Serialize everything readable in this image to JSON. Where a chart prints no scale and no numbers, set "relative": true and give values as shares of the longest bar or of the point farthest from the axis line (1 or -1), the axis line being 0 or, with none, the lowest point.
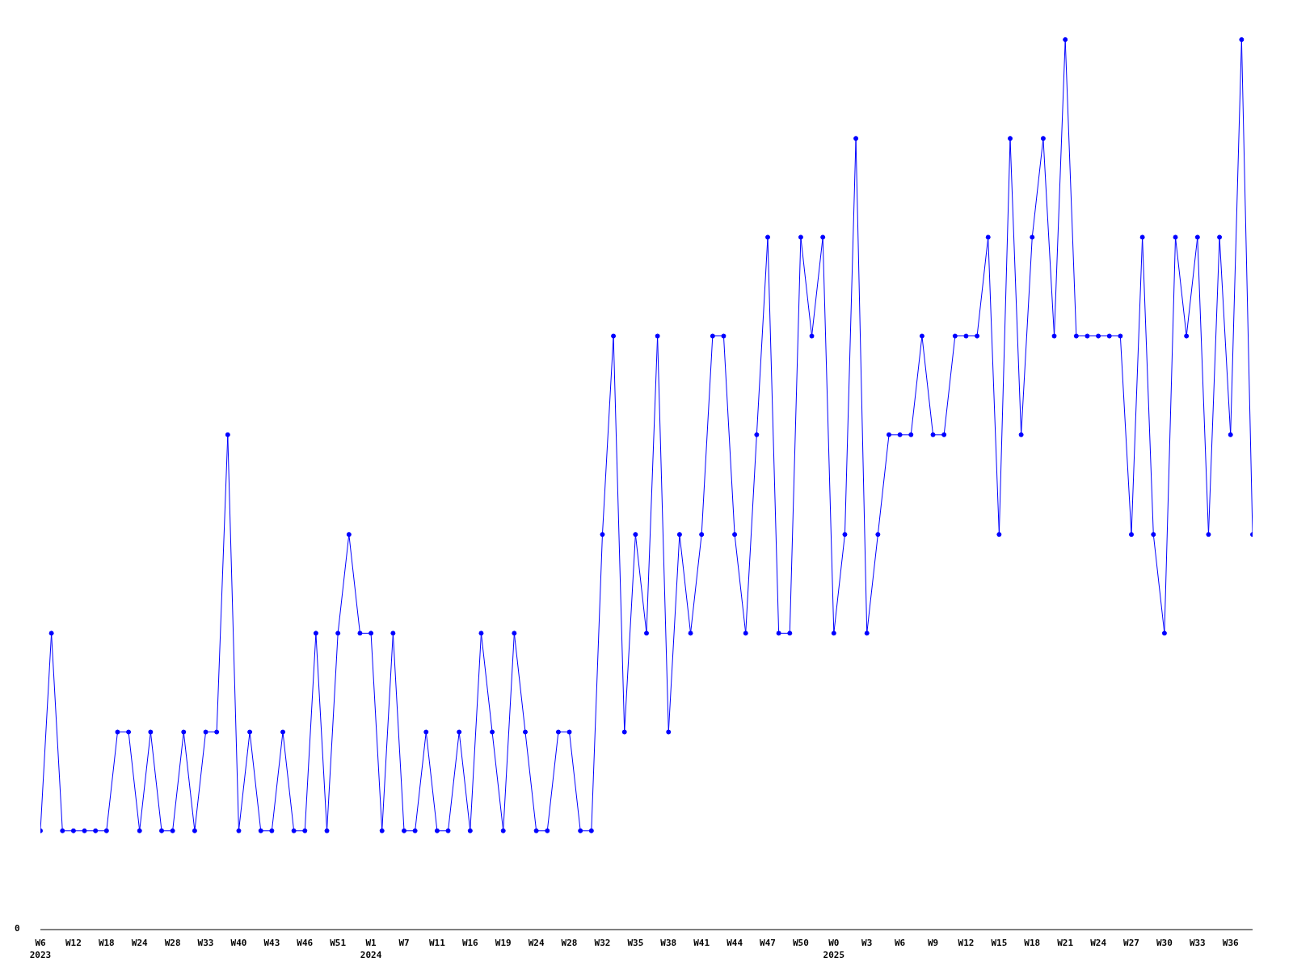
{
  "chart_data": {
    "type": "line",
    "relative": true,
    "annotations": [
      "0"
    ],
    "marker": "circle",
    "line_style": "solid",
    "legend": false,
    "categories": [
      "W6\n2023",
      null,
      null,
      "W12",
      null,
      null,
      "W18",
      null,
      null,
      "W24",
      null,
      null,
      "W28",
      null,
      null,
      "W33",
      null,
      null,
      "W40",
      null,
      null,
      "W43",
      null,
      null,
      "W46",
      null,
      null,
      "W51",
      null,
      null,
      "W1\n2024",
      null,
      null,
      "W7",
      null,
      null,
      "W11",
      null,
      null,
      "W16",
      null,
      null,
      "W19",
      null,
      null,
      "W24",
      null,
      null,
      "W28",
      null,
      null,
      "W32",
      null,
      null,
      "W35",
      null,
      null,
      "W38",
      null,
      null,
      "W41",
      null,
      null,
      "W44",
      null,
      null,
      "W47",
      null,
      null,
      "W50",
      null,
      null,
      "W0\n2025",
      null,
      null,
      "W3",
      null,
      null,
      "W6",
      null,
      null,
      "W9",
      null,
      null,
      "W12",
      null,
      null,
      "W15",
      null,
      null,
      "W18",
      null,
      null,
      "W21",
      null,
      null,
      "W24",
      null,
      null,
      "W27",
      null,
      null,
      "W30",
      null,
      null,
      "W33",
      null,
      null,
      "W36",
      null,
      null
    ],
    "series": [
      {
        "color": "#0000ff",
        "values": [
          0.111,
          0.333,
          0.111,
          0.111,
          0.111,
          0.111,
          0.111,
          0.222,
          0.222,
          0.111,
          0.222,
          0.111,
          0.111,
          0.222,
          0.111,
          0.222,
          0.222,
          0.556,
          0.111,
          0.222,
          0.111,
          0.111,
          0.222,
          0.111,
          0.111,
          0.333,
          0.111,
          0.333,
          0.444,
          0.333,
          0.333,
          0.111,
          0.333,
          0.111,
          0.111,
          0.222,
          0.111,
          0.111,
          0.222,
          0.111,
          0.333,
          0.222,
          0.111,
          0.333,
          0.222,
          0.111,
          0.111,
          0.222,
          0.222,
          0.111,
          0.111,
          0.444,
          0.667,
          0.222,
          0.444,
          0.333,
          0.667,
          0.222,
          0.444,
          0.333,
          0.444,
          0.667,
          0.667,
          0.444,
          0.333,
          0.556,
          0.778,
          0.333,
          0.333,
          0.778,
          0.667,
          0.778,
          0.333,
          0.444,
          0.889,
          0.333,
          0.444,
          0.556,
          0.556,
          0.556,
          0.667,
          0.556,
          0.556,
          0.667,
          0.667,
          0.667,
          0.778,
          0.444,
          0.889,
          0.556,
          0.778,
          0.889,
          0.667,
          1,
          0.667,
          0.667,
          0.667,
          0.667,
          0.667,
          0.444,
          0.778,
          0.444,
          0.333,
          0.778,
          0.667,
          0.778,
          0.444,
          0.778,
          0.556,
          1,
          0.444
        ]
      }
    ]
  }
}
